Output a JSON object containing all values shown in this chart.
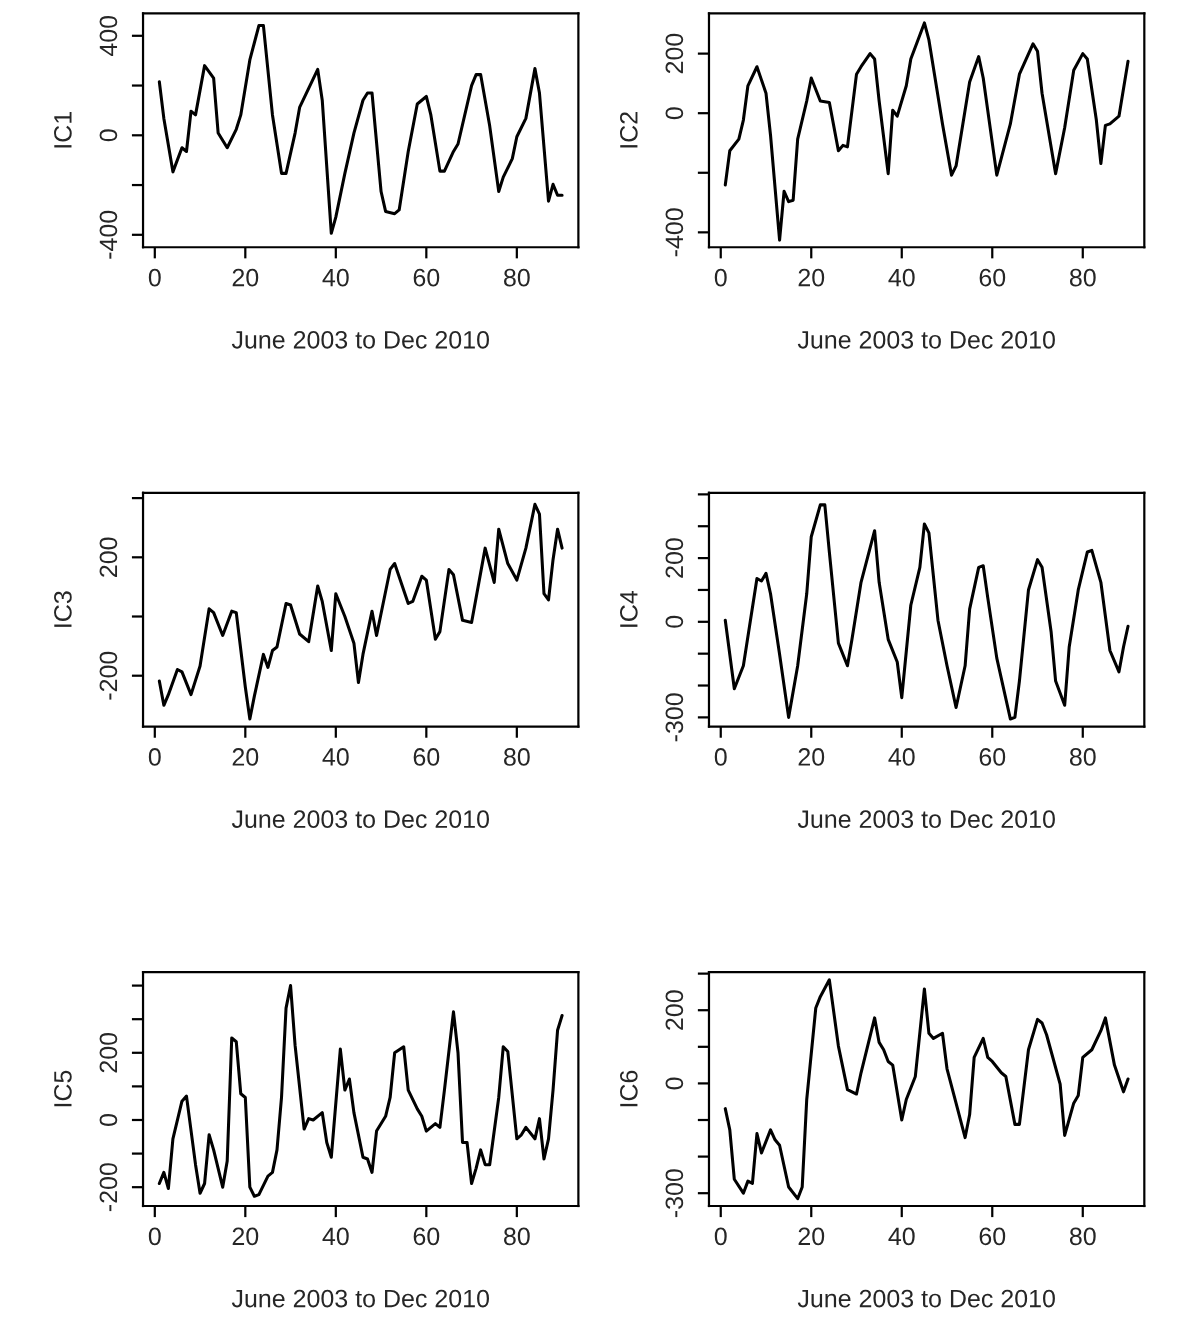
{
  "chart_data": [
    {
      "type": "line",
      "xlabel": "June 2003 to Dec 2010",
      "ylabel": "IC1",
      "xlim": [
        -2.6,
        93.6
      ],
      "ylim": [
        -450,
        490
      ],
      "xticks": [
        0,
        20,
        40,
        60,
        80
      ],
      "yticks": [
        {
          "value": -400,
          "label": "-400"
        },
        {
          "value": -200,
          "label": null
        },
        0,
        {
          "value": 200,
          "label": null
        },
        400
      ],
      "grid": false,
      "series": [
        {
          "color": "#000000",
          "x": [
            1,
            2,
            4,
            6,
            7,
            8,
            9,
            11,
            13,
            14,
            16,
            18,
            19,
            21,
            23,
            24,
            26,
            28,
            29,
            31,
            32,
            36,
            37,
            39,
            40,
            42,
            44,
            46,
            47,
            48,
            50,
            51,
            53,
            54,
            56,
            58,
            60,
            61,
            63,
            64,
            66,
            67,
            70,
            71,
            72,
            74,
            76,
            77,
            79,
            80,
            82,
            84,
            85,
            87,
            88,
            89,
            90
          ],
          "values": [
            215,
            68,
            -147,
            -50,
            -65,
            97,
            82,
            280,
            230,
            9,
            -50,
            24,
            82,
            303,
            441,
            441,
            82,
            -153,
            -153,
            9,
            112,
            265,
            141,
            -394,
            -329,
            -153,
            9,
            141,
            170,
            170,
            -226,
            -306,
            -315,
            -300,
            -65,
            126,
            156,
            82,
            -144,
            -144,
            -65,
            -35,
            200,
            244,
            244,
            38,
            -226,
            -168,
            -94,
            -6,
            68,
            268,
            170,
            -265,
            -197,
            -241,
            -241
          ]
        }
      ]
    },
    {
      "type": "line",
      "xlabel": "June 2003 to Dec 2010",
      "ylabel": "IC2",
      "xlim": [
        -2.6,
        93.6
      ],
      "ylim": [
        -450,
        335
      ],
      "xticks": [
        0,
        20,
        40,
        60,
        80
      ],
      "yticks": [
        {
          "value": -400,
          "label": "-400"
        },
        {
          "value": -200,
          "label": null
        },
        0,
        200
      ],
      "grid": false,
      "series": [
        {
          "color": "#000000",
          "x": [
            1,
            2,
            4,
            5,
            6,
            8,
            10,
            11,
            13,
            14,
            15,
            16,
            17,
            19,
            20,
            22,
            24,
            26,
            27,
            28,
            30,
            31,
            33,
            34,
            35,
            37,
            38,
            39,
            41,
            42,
            45,
            46,
            49,
            51,
            52,
            55,
            57,
            58,
            61,
            62,
            64,
            66,
            69,
            70,
            71,
            74,
            76,
            78,
            80,
            81,
            83,
            84,
            85,
            86,
            88,
            90
          ],
          "values": [
            -241,
            -126,
            -87,
            -23,
            92,
            156,
            67,
            -74,
            -426,
            -262,
            -297,
            -292,
            -87,
            41,
            118,
            41,
            36,
            -126,
            -108,
            -113,
            131,
            156,
            200,
            182,
            41,
            -203,
            10,
            -10,
            92,
            182,
            303,
            246,
            -36,
            -208,
            -177,
            105,
            190,
            118,
            -208,
            -151,
            -36,
            131,
            233,
            208,
            67,
            -203,
            -49,
            144,
            200,
            182,
            -23,
            -169,
            -41,
            -36,
            -10,
            174
          ]
        }
      ]
    },
    {
      "type": "line",
      "xlabel": "June 2003 to Dec 2010",
      "ylabel": "IC3",
      "xlim": [
        -2.6,
        93.6
      ],
      "ylim": [
        -372,
        418
      ],
      "xticks": [
        0,
        20,
        40,
        60,
        80
      ],
      "yticks": [
        -200,
        {
          "value": 0,
          "label": null
        },
        200,
        {
          "value": 400,
          "label": null
        }
      ],
      "grid": false,
      "series": [
        {
          "color": "#000000",
          "x": [
            1,
            2,
            3,
            5,
            6,
            8,
            10,
            12,
            13,
            15,
            17,
            18,
            20,
            21,
            22,
            24,
            25,
            26,
            27,
            29,
            30,
            32,
            34,
            36,
            37,
            39,
            40,
            42,
            44,
            45,
            46,
            48,
            49,
            52,
            53,
            56,
            57,
            59,
            60,
            62,
            63,
            65,
            66,
            68,
            70,
            73,
            75,
            76,
            78,
            80,
            82,
            84,
            85,
            86,
            87,
            88,
            89,
            90
          ],
          "values": [
            -218,
            -300,
            -264,
            -179,
            -187,
            -264,
            -167,
            26,
            13,
            -64,
            18,
            13,
            -238,
            -346,
            -269,
            -128,
            -172,
            -115,
            -103,
            44,
            39,
            -59,
            -85,
            103,
            51,
            -115,
            77,
            0,
            -90,
            -223,
            -128,
            18,
            -64,
            159,
            179,
            44,
            51,
            136,
            123,
            -77,
            -51,
            159,
            141,
            -13,
            -20,
            231,
            115,
            295,
            179,
            123,
            231,
            379,
            346,
            77,
            56,
            192,
            295,
            231
          ]
        }
      ]
    },
    {
      "type": "line",
      "xlabel": "June 2003 to Dec 2010",
      "ylabel": "IC4",
      "xlim": [
        -2.6,
        93.6
      ],
      "ylim": [
        -329,
        405
      ],
      "xticks": [
        0,
        20,
        40,
        60,
        80
      ],
      "yticks": [
        {
          "value": -300,
          "label": "-300"
        },
        {
          "value": -200,
          "label": null
        },
        {
          "value": -100,
          "label": null
        },
        0,
        {
          "value": 100,
          "label": null
        },
        200,
        {
          "value": 300,
          "label": null
        },
        {
          "value": 400,
          "label": null
        }
      ],
      "grid": false,
      "series": [
        {
          "color": "#000000",
          "x": [
            1,
            3,
            5,
            8,
            9,
            10,
            11,
            13,
            15,
            17,
            19,
            20,
            22,
            23,
            24,
            26,
            28,
            29,
            31,
            34,
            35,
            37,
            39,
            40,
            42,
            44,
            45,
            46,
            48,
            50,
            52,
            54,
            55,
            57,
            58,
            59,
            61,
            64,
            65,
            66,
            68,
            70,
            71,
            73,
            74,
            76,
            77,
            79,
            81,
            82,
            84,
            86,
            88,
            89,
            90
          ],
          "values": [
            5,
            -210,
            -138,
            136,
            128,
            152,
            88,
            -102,
            -300,
            -138,
            88,
            267,
            367,
            367,
            219,
            -67,
            -138,
            -55,
            124,
            286,
            124,
            -55,
            -126,
            -238,
            52,
            171,
            307,
            279,
            5,
            -138,
            -269,
            -138,
            40,
            171,
            176,
            76,
            -114,
            -305,
            -300,
            -186,
            100,
            195,
            171,
            -31,
            -186,
            -262,
            -79,
            100,
            219,
            224,
            124,
            -90,
            -157,
            -79,
            -14
          ]
        }
      ]
    },
    {
      "type": "line",
      "xlabel": "June 2003 to Dec 2010",
      "ylabel": "IC5",
      "xlim": [
        -2.6,
        93.6
      ],
      "ylim": [
        -256,
        440
      ],
      "xticks": [
        0,
        20,
        40,
        60,
        80
      ],
      "yticks": [
        -200,
        {
          "value": -100,
          "label": null
        },
        0,
        {
          "value": 100,
          "label": null
        },
        200,
        {
          "value": 300,
          "label": null
        },
        {
          "value": 400,
          "label": null
        }
      ],
      "grid": false,
      "series": [
        {
          "color": "#000000",
          "x": [
            1,
            2,
            3,
            4,
            6,
            7,
            9,
            10,
            11,
            12,
            13,
            15,
            16,
            17,
            18,
            19,
            20,
            21,
            22,
            23,
            25,
            26,
            27,
            28,
            29,
            30,
            31,
            33,
            34,
            35,
            37,
            38,
            39,
            41,
            42,
            43,
            44,
            46,
            47,
            48,
            49,
            51,
            52,
            53,
            55,
            56,
            58,
            59,
            60,
            62,
            63,
            64,
            66,
            67,
            68,
            69,
            70,
            71,
            72,
            73,
            74,
            76,
            77,
            78,
            80,
            81,
            82,
            84,
            85,
            86,
            87,
            88,
            89,
            90
          ],
          "values": [
            -189,
            -156,
            -204,
            -56,
            56,
            71,
            -133,
            -218,
            -189,
            -44,
            -89,
            -200,
            -122,
            244,
            233,
            78,
            67,
            -200,
            -227,
            -222,
            -167,
            -156,
            -89,
            67,
            333,
            400,
            222,
            -27,
            4,
            0,
            22,
            -67,
            -111,
            211,
            89,
            122,
            22,
            -111,
            -116,
            -156,
            -33,
            11,
            67,
            200,
            218,
            89,
            33,
            11,
            -33,
            -11,
            -22,
            89,
            322,
            200,
            -67,
            -67,
            -189,
            -144,
            -89,
            -133,
            -133,
            67,
            218,
            204,
            -56,
            -44,
            -22,
            -56,
            4,
            -116,
            -56,
            89,
            267,
            311
          ]
        }
      ]
    },
    {
      "type": "line",
      "xlabel": "June 2003 to Dec 2010",
      "ylabel": "IC6",
      "xlim": [
        -2.6,
        93.6
      ],
      "ylim": [
        -335,
        304
      ],
      "xticks": [
        0,
        20,
        40,
        60,
        80
      ],
      "yticks": [
        {
          "value": -300,
          "label": "-300"
        },
        {
          "value": -200,
          "label": null
        },
        {
          "value": -100,
          "label": null
        },
        0,
        {
          "value": 100,
          "label": null
        },
        200,
        {
          "value": 300,
          "label": null
        }
      ],
      "grid": false,
      "series": [
        {
          "color": "#000000",
          "x": [
            1,
            2,
            3,
            5,
            6,
            7,
            8,
            9,
            11,
            12,
            13,
            15,
            17,
            18,
            19,
            21,
            22,
            24,
            26,
            28,
            30,
            31,
            34,
            35,
            36,
            37,
            38,
            40,
            41,
            43,
            45,
            46,
            47,
            49,
            50,
            52,
            54,
            55,
            56,
            58,
            59,
            60,
            62,
            63,
            65,
            66,
            68,
            70,
            71,
            72,
            75,
            76,
            78,
            79,
            80,
            82,
            84,
            85,
            87,
            89,
            90
          ],
          "values": [
            -69,
            -127,
            -262,
            -300,
            -267,
            -273,
            -137,
            -190,
            -127,
            -154,
            -169,
            -283,
            -315,
            -283,
            -44,
            206,
            237,
            283,
            102,
            -17,
            -29,
            29,
            179,
            112,
            92,
            60,
            50,
            -100,
            -44,
            19,
            258,
            137,
            123,
            137,
            40,
            -54,
            -148,
            -85,
            71,
            123,
            71,
            60,
            29,
            19,
            -112,
            -112,
            92,
            175,
            165,
            133,
            -2,
            -142,
            -54,
            -33,
            71,
            92,
            144,
            179,
            50,
            -23,
            12
          ]
        }
      ]
    }
  ]
}
